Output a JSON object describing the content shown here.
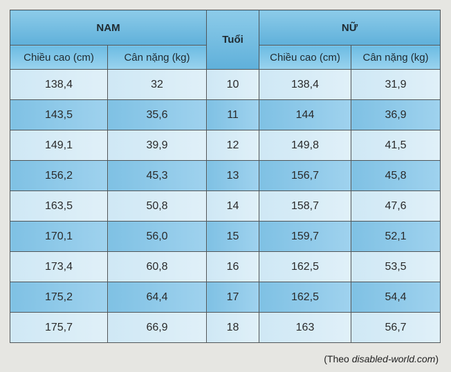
{
  "table": {
    "header": {
      "group_left": "NAM",
      "age": "Tuổi",
      "group_right": "NỮ",
      "columns": [
        "Chiều cao (cm)",
        "Cân nặng (kg)",
        "Chiều cao (cm)",
        "Cân nặng (kg)"
      ]
    },
    "rows": [
      [
        "138,4",
        "32",
        "10",
        "138,4",
        "31,9"
      ],
      [
        "143,5",
        "35,6",
        "11",
        "144",
        "36,9"
      ],
      [
        "149,1",
        "39,9",
        "12",
        "149,8",
        "41,5"
      ],
      [
        "156,2",
        "45,3",
        "13",
        "156,7",
        "45,8"
      ],
      [
        "163,5",
        "50,8",
        "14",
        "158,7",
        "47,6"
      ],
      [
        "170,1",
        "56,0",
        "15",
        "159,7",
        "52,1"
      ],
      [
        "173,4",
        "60,8",
        "16",
        "162,5",
        "53,5"
      ],
      [
        "175,2",
        "64,4",
        "17",
        "162,5",
        "54,4"
      ],
      [
        "175,7",
        "66,9",
        "18",
        "163",
        "56,7"
      ]
    ]
  },
  "source": {
    "prefix": "(Theo ",
    "site": "disabled-world.com",
    "suffix": ")"
  }
}
